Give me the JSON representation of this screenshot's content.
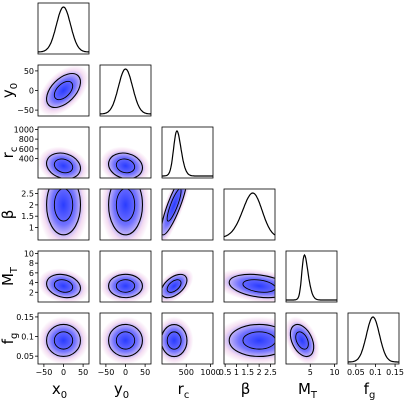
{
  "chart_data": {
    "type": "corner",
    "parameters": [
      {
        "key": "x0",
        "label_main": "x",
        "label_sub": "0",
        "range": [
          -65,
          65
        ],
        "ticks": [
          {
            "v": -50,
            "t": "−50"
          },
          {
            "v": 0,
            "t": "0"
          },
          {
            "v": 50,
            "t": "50"
          }
        ],
        "mean": 0,
        "sd": 18,
        "skew": 0,
        "hist_scale": 1
      },
      {
        "key": "y0",
        "label_main": "y",
        "label_sub": "0",
        "range": [
          -65,
          65
        ],
        "ticks": [
          {
            "v": -50,
            "t": "−50"
          },
          {
            "v": 0,
            "t": "0"
          },
          {
            "v": 50,
            "t": "50"
          }
        ],
        "mean": 0,
        "sd": 18,
        "skew": 0,
        "hist_scale": 1
      },
      {
        "key": "rc",
        "label_main": "r",
        "label_sub": "c",
        "range": [
          0,
          1050
        ],
        "ticks": [
          {
            "v": 400,
            "t": "400"
          },
          {
            "v": 600,
            "t": "600"
          },
          {
            "v": 800,
            "t": "800"
          },
          {
            "v": 1000,
            "t": "1000"
          }
        ],
        "xticks": [
          {
            "v": 500,
            "t": "500"
          },
          {
            "v": 1000,
            "t": "1000"
          }
        ],
        "mean": 250,
        "sd": 110,
        "skew": 3,
        "hist_scale": 1
      },
      {
        "key": "beta",
        "label_main": "β",
        "label_sub": "",
        "range": [
          0.45,
          2.7
        ],
        "ticks": [
          {
            "v": 1,
            "t": "1"
          },
          {
            "v": 1.5,
            "t": "1.5"
          },
          {
            "v": 2,
            "t": "2"
          },
          {
            "v": 2.5,
            "t": "2.5"
          }
        ],
        "xticks": [
          {
            "v": 0.5,
            "t": "0.5"
          },
          {
            "v": 1,
            "t": "1"
          },
          {
            "v": 1.5,
            "t": "1.5"
          },
          {
            "v": 2,
            "t": "2"
          },
          {
            "v": 2.5,
            "t": "2.5"
          }
        ],
        "mean": 2.0,
        "sd": 0.55,
        "skew": -2,
        "hist_scale": 1
      },
      {
        "key": "MT",
        "label_main": "M",
        "label_sub": "T",
        "range": [
          0,
          10.5
        ],
        "ticks": [
          {
            "v": 2,
            "t": "2"
          },
          {
            "v": 4,
            "t": "4"
          },
          {
            "v": 6,
            "t": "6"
          },
          {
            "v": 8,
            "t": "8"
          },
          {
            "v": 10,
            "t": "10"
          }
        ],
        "xticks": [
          {
            "v": 5,
            "t": "5"
          },
          {
            "v": 10,
            "t": "10"
          }
        ],
        "mean": 3.3,
        "sd": 1.0,
        "skew": 4,
        "hist_scale": 1
      },
      {
        "key": "fg",
        "label_main": "f",
        "label_sub": "g",
        "range": [
          0.03,
          0.16
        ],
        "ticks": [
          {
            "v": 0.05,
            "t": "0.05"
          },
          {
            "v": 0.1,
            "t": "0.1"
          },
          {
            "v": 0.15,
            "t": "0.15"
          }
        ],
        "xticks": [
          {
            "v": 0.05,
            "t": "0.05"
          },
          {
            "v": 0.1,
            "t": "0.1"
          },
          {
            "v": 0.15,
            "t": "0.15"
          }
        ],
        "mean": 0.09,
        "sd": 0.017,
        "skew": 0.5,
        "hist_scale": 1
      }
    ],
    "correlations": [
      {
        "row": "y0",
        "col": "x0",
        "rho": 0.5
      },
      {
        "row": "rc",
        "col": "x0",
        "rho": -0.2
      },
      {
        "row": "rc",
        "col": "y0",
        "rho": -0.15
      },
      {
        "row": "beta",
        "col": "x0",
        "rho": 0.0
      },
      {
        "row": "beta",
        "col": "y0",
        "rho": 0.0
      },
      {
        "row": "beta",
        "col": "rc",
        "rho": 0.85
      },
      {
        "row": "MT",
        "col": "x0",
        "rho": -0.2
      },
      {
        "row": "MT",
        "col": "y0",
        "rho": 0.0
      },
      {
        "row": "MT",
        "col": "rc",
        "rho": 0.5
      },
      {
        "row": "MT",
        "col": "beta",
        "rho": -0.3
      },
      {
        "row": "fg",
        "col": "x0",
        "rho": 0.0
      },
      {
        "row": "fg",
        "col": "y0",
        "rho": 0.0
      },
      {
        "row": "fg",
        "col": "rc",
        "rho": 0.0
      },
      {
        "row": "fg",
        "col": "beta",
        "rho": 0.0
      },
      {
        "row": "fg",
        "col": "MT",
        "rho": -0.4
      }
    ],
    "colors": {
      "contour_line": "#000000",
      "density_high": "#2a3cff",
      "density_mid": "#6a6aff",
      "density_low": "#f3d9f0",
      "histogram_line": "#000000",
      "panel_border": "#000000"
    },
    "grid": false,
    "legend": "none"
  }
}
